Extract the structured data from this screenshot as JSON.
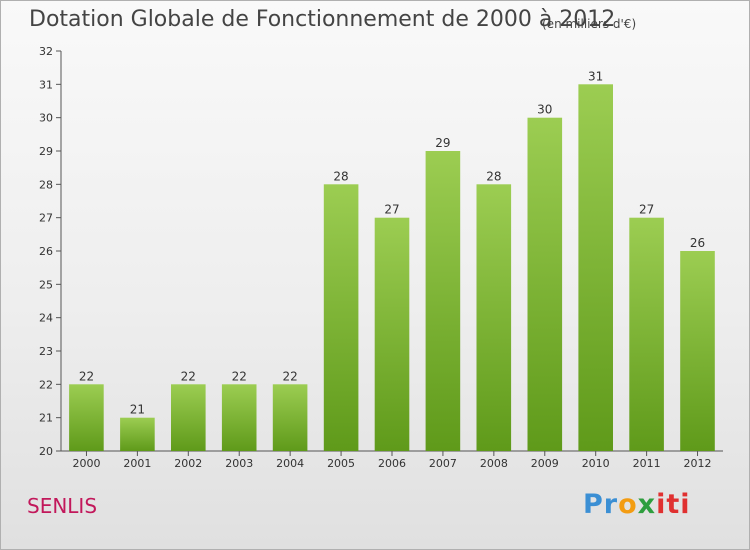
{
  "header": {
    "title": "Dotation Globale de Fonctionnement de 2000 à 2012",
    "subtitle": "(en milliers d'€)"
  },
  "footer": {
    "city": "SENLIS",
    "logo": [
      "Pr",
      "o",
      "x",
      "iti"
    ]
  },
  "chart_data": {
    "type": "bar",
    "title": "Dotation Globale de Fonctionnement de 2000 à 2012",
    "subtitle": "(en milliers d'€)",
    "xlabel": "",
    "ylabel": "",
    "categories": [
      "2000",
      "2001",
      "2002",
      "2003",
      "2004",
      "2005",
      "2006",
      "2007",
      "2008",
      "2009",
      "2010",
      "2011",
      "2012"
    ],
    "values": [
      22,
      21,
      22,
      22,
      22,
      28,
      27,
      29,
      28,
      30,
      31,
      27,
      26
    ],
    "ylim": [
      20,
      32
    ],
    "yticks": [
      20,
      21,
      22,
      23,
      24,
      25,
      26,
      27,
      28,
      29,
      30,
      31,
      32
    ],
    "grid": false,
    "legend": "none",
    "colors": {
      "bar_top": "#9ccd52",
      "bar_bottom": "#5f9a1a",
      "axis": "#555555"
    }
  }
}
